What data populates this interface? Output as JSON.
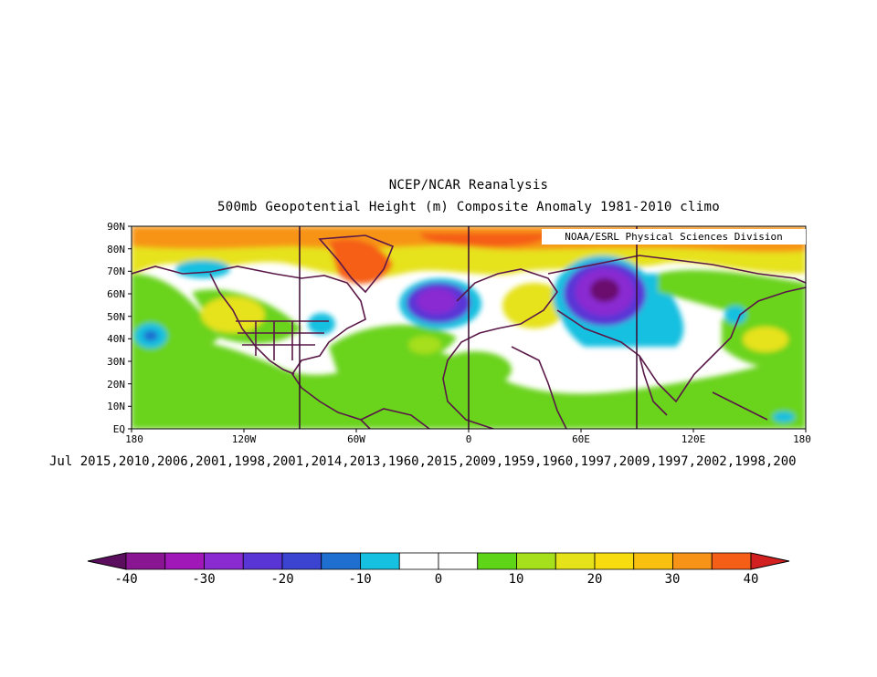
{
  "title": "NCEP/NCAR Reanalysis",
  "subtitle": "500mb Geopotential Height (m) Composite Anomaly 1981-2010 climo",
  "credit": "NOAA/ESRL Physical Sciences Division",
  "dates_label": "Jul 2015,2010,2006,2001,1998,2001,2014,2013,1960,2015,2009,1959,1960,1997,2009,1997,2002,1998,200",
  "lat_ticks": [
    "90N",
    "80N",
    "70N",
    "60N",
    "50N",
    "40N",
    "30N",
    "20N",
    "10N",
    "EQ"
  ],
  "lon_ticks": [
    "180",
    "120W",
    "60W",
    "0",
    "60E",
    "120E",
    "180"
  ],
  "colorbar": {
    "labels": [
      "-40",
      "-30",
      "-20",
      "-10",
      "0",
      "10",
      "20",
      "30",
      "40"
    ],
    "colors": [
      "#6a0d6e",
      "#8a1592",
      "#a018b8",
      "#8a2bd2",
      "#5a35d6",
      "#3a44d0",
      "#1e6fd0",
      "#16c0e0",
      "#ffffff",
      "#ffffff",
      "#5fd518",
      "#a6df1c",
      "#e6e21a",
      "#f7dc10",
      "#f9c010",
      "#f79418",
      "#f55e16",
      "#dd2f14",
      "#b01010"
    ],
    "arrow_left": "#5b0e5e",
    "arrow_right": "#d22020"
  }
}
